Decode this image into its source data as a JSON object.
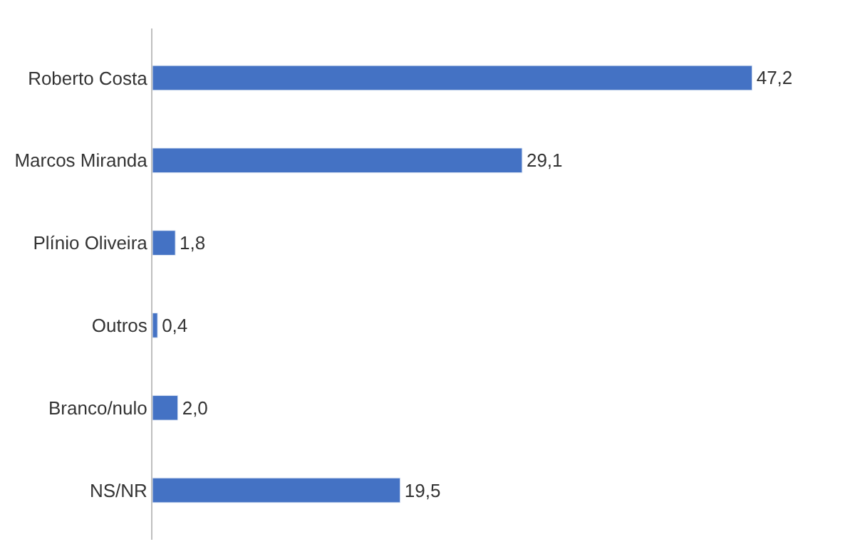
{
  "chart_data": {
    "type": "bar",
    "orientation": "horizontal",
    "categories": [
      "Roberto Costa",
      "Marcos Miranda",
      "Plínio Oliveira",
      "Outros",
      "Branco/nulo",
      "NS/NR"
    ],
    "values": [
      47.2,
      29.1,
      1.8,
      0.4,
      2.0,
      19.5
    ],
    "value_labels": [
      "47,2",
      "29,1",
      "1,8",
      "0,4",
      "2,0",
      "19,5"
    ],
    "color": "#4472c4"
  }
}
